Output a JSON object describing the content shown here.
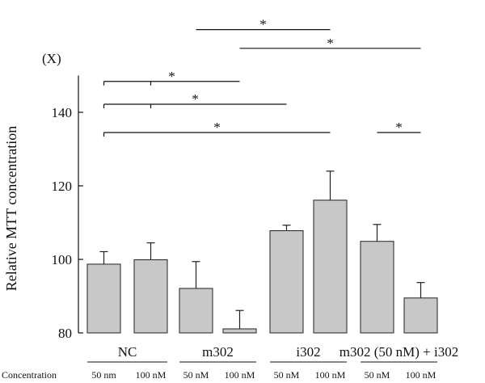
{
  "chart_data": {
    "type": "bar",
    "title": "",
    "ylabel": "Relative MTT concentration",
    "y_unit": "(X)",
    "ylim": [
      80,
      150
    ],
    "yticks": [
      80,
      100,
      120,
      140
    ],
    "bar_color": "#c8c8c8",
    "row_label": "Concentration",
    "groups": [
      {
        "label": "NC",
        "bars": [
          0,
          1
        ]
      },
      {
        "label": "m302",
        "bars": [
          2,
          3
        ]
      },
      {
        "label": "i302",
        "bars": [
          4,
          5
        ]
      },
      {
        "label": "m302 (50 nM) + i302",
        "bars": [
          6,
          7
        ]
      }
    ],
    "bars": [
      {
        "group": "NC",
        "concentration": "50 nm",
        "value": 98.7,
        "error": 3.4
      },
      {
        "group": "NC",
        "concentration": "100 nM",
        "value": 99.9,
        "error": 4.6
      },
      {
        "group": "m302",
        "concentration": "50 nM",
        "value": 92.1,
        "error": 7.3
      },
      {
        "group": "m302",
        "concentration": "100 nM",
        "value": 81.1,
        "error": 5.0
      },
      {
        "group": "i302",
        "concentration": "50 nM",
        "value": 107.8,
        "error": 1.5
      },
      {
        "group": "i302",
        "concentration": "100 nM",
        "value": 116.1,
        "error": 7.9
      },
      {
        "group": "m302 (50 nM) + i302",
        "concentration": "50 nM",
        "value": 104.9,
        "error": 4.6
      },
      {
        "group": "m302 (50 nM) + i302",
        "concentration": "100 nM",
        "value": 89.5,
        "error": 4.2
      }
    ],
    "significance": [
      {
        "from_bar": 2,
        "to_bar": 5,
        "level": 162.5,
        "label": "*",
        "left_drop": 0
      },
      {
        "from_bar": 3,
        "to_bar": 7,
        "level": 157.4,
        "label": "*",
        "left_drop": 0
      },
      {
        "from_bar": 0,
        "to_bar": 3,
        "level": 148.4,
        "label": "*",
        "left_drop": 1,
        "mid_drop": true
      },
      {
        "from_bar": 0,
        "to_bar": 4,
        "level": 142.2,
        "label": "*",
        "left_drop": 1,
        "mid_drop": true
      },
      {
        "from_bar": 0,
        "to_bar": 5,
        "level": 134.5,
        "label": "*",
        "left_drop": 1
      },
      {
        "from_bar": 6,
        "to_bar": 7,
        "level": 134.5,
        "label": "*",
        "left_drop": 0
      }
    ]
  }
}
